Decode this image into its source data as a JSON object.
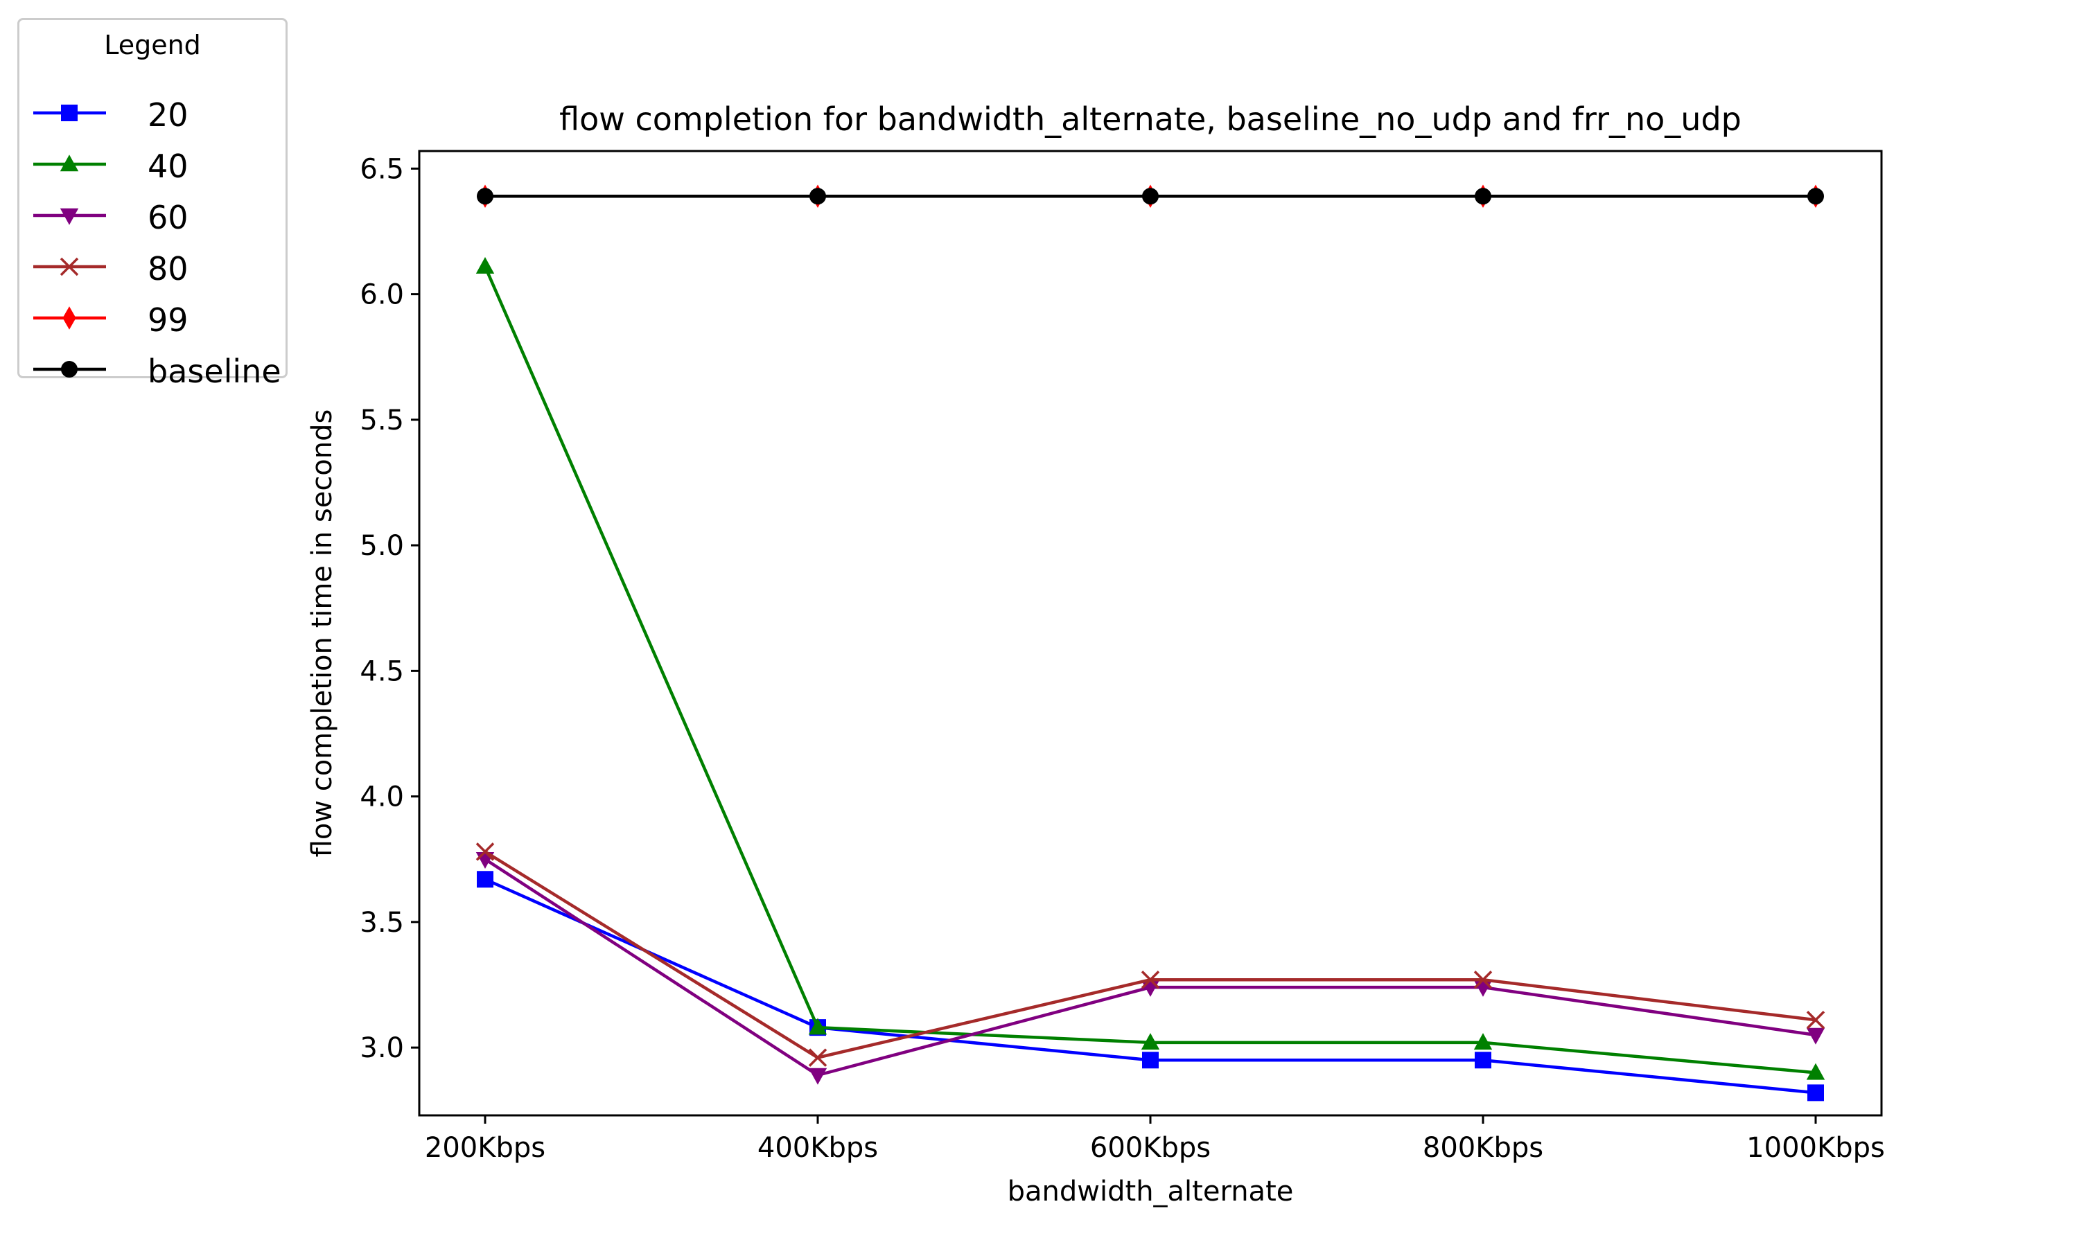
{
  "chart_data": {
    "type": "line",
    "title": "flow completion for bandwidth_alternate, baseline_no_udp and frr_no_udp",
    "xlabel": "bandwidth_alternate",
    "ylabel": "flow completion time in seconds",
    "categories": [
      "200Kbps",
      "400Kbps",
      "600Kbps",
      "800Kbps",
      "1000Kbps"
    ],
    "ylim": [
      2.73,
      6.57
    ],
    "yticks": [
      3.0,
      3.5,
      4.0,
      4.5,
      5.0,
      5.5,
      6.0,
      6.5
    ],
    "grid": false,
    "legend": {
      "title": "Legend",
      "placement": "outside-top-left"
    },
    "series": [
      {
        "name": "20",
        "color": "#0000ff",
        "marker": "square",
        "values": [
          3.67,
          3.08,
          2.95,
          2.95,
          2.82
        ]
      },
      {
        "name": "40",
        "color": "#008000",
        "marker": "triangle-up",
        "values": [
          6.11,
          3.08,
          3.02,
          3.02,
          2.9
        ]
      },
      {
        "name": "60",
        "color": "#800080",
        "marker": "triangle-down",
        "values": [
          3.75,
          2.89,
          3.24,
          3.24,
          3.05
        ]
      },
      {
        "name": "80",
        "color": "#a52a2a",
        "marker": "x",
        "values": [
          3.78,
          2.96,
          3.27,
          3.27,
          3.11
        ]
      },
      {
        "name": "99",
        "color": "#ff0000",
        "marker": "diamond",
        "values": [
          6.39,
          6.39,
          6.39,
          6.39,
          6.39
        ]
      },
      {
        "name": "baseline",
        "color": "#000000",
        "marker": "circle",
        "values": [
          6.39,
          6.39,
          6.39,
          6.39,
          6.39
        ]
      }
    ]
  }
}
